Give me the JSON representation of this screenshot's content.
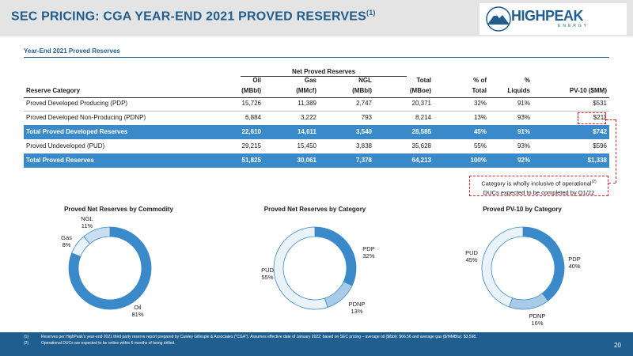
{
  "header": {
    "title": "SEC PRICING: CGA YEAR-END 2021 PROVED RESERVES",
    "title_sup": "(1)",
    "logo_text": "HIGHPEAK",
    "logo_sub": "ENERGY"
  },
  "section": "Year-End 2021 Proved Reserves",
  "table": {
    "group_header": "Net Proved Reserves",
    "columns_top": [
      "Oil",
      "Gas",
      "NGL",
      "Total",
      "% of",
      "%",
      ""
    ],
    "columns_bottom": [
      "(MBbl)",
      "(MMcf)",
      "(MBbl)",
      "(MBoe)",
      "Total",
      "Liquids",
      "PV-10 ($MM)"
    ],
    "category_header": "Reserve Category",
    "rows": [
      {
        "category": "Proved Developed Producing (PDP)",
        "values": [
          "15,726",
          "11,389",
          "2,747",
          "20,371",
          "32%",
          "91%",
          "$531"
        ],
        "highlight": false
      },
      {
        "category": "Proved Developed Non-Producing (PDNP)",
        "values": [
          "6,884",
          "3,222",
          "793",
          "8,214",
          "13%",
          "93%",
          "$211"
        ],
        "highlight": false
      },
      {
        "category": "Total Proved Developed Reserves",
        "values": [
          "22,610",
          "14,611",
          "3,540",
          "28,585",
          "45%",
          "91%",
          "$742"
        ],
        "highlight": true
      },
      {
        "category": "Proved Undeveloped (PUD)",
        "values": [
          "29,215",
          "15,450",
          "3,838",
          "35,628",
          "55%",
          "93%",
          "$596"
        ],
        "highlight": false
      },
      {
        "category": "Total Proved Reserves",
        "values": [
          "51,825",
          "30,061",
          "7,378",
          "64,213",
          "100%",
          "92%",
          "$1,338"
        ],
        "highlight": true
      }
    ]
  },
  "note": {
    "line1": "Category is wholly inclusive of operational",
    "line1_sup": "(2)",
    "line2": "DUCs expected to be completed by Q1/22"
  },
  "charts": {
    "commodity": {
      "title": "Proved Net Reserves by Commodity",
      "labels": [
        {
          "name": "NGL",
          "pct": "11%"
        },
        {
          "name": "Gas",
          "pct": "8%"
        },
        {
          "name": "Oil",
          "pct": "81%"
        }
      ]
    },
    "category": {
      "title": "Proved Net Reserves by Category",
      "labels": [
        {
          "name": "PDP",
          "pct": "32%"
        },
        {
          "name": "PUD",
          "pct": "55%"
        },
        {
          "name": "PDNP",
          "pct": "13%"
        }
      ]
    },
    "pv10": {
      "title": "Proved PV-10 by Category",
      "labels": [
        {
          "name": "PUD",
          "pct": "45%"
        },
        {
          "name": "PDP",
          "pct": "40%"
        },
        {
          "name": "PDNP",
          "pct": "16%"
        }
      ]
    }
  },
  "chart_data": [
    {
      "type": "pie",
      "title": "Proved Net Reserves by Commodity",
      "categories": [
        "Oil",
        "Gas",
        "NGL"
      ],
      "values": [
        81,
        8,
        11
      ],
      "colors": [
        "#3a89c9",
        "#eaf2fa",
        "#c9def1"
      ]
    },
    {
      "type": "pie",
      "title": "Proved Net Reserves by Category",
      "categories": [
        "PDP",
        "PDNP",
        "PUD"
      ],
      "values": [
        32,
        13,
        55
      ],
      "colors": [
        "#3a89c9",
        "#a9cbe8",
        "#eaf2fa"
      ]
    },
    {
      "type": "pie",
      "title": "Proved PV-10 by Category",
      "categories": [
        "PDP",
        "PDNP",
        "PUD"
      ],
      "values": [
        40,
        16,
        45
      ],
      "colors": [
        "#3a89c9",
        "#a9cbe8",
        "#eaf2fa"
      ]
    }
  ],
  "footnotes": [
    {
      "num": "(1)",
      "text": "Reserves per HighPeak's year-end 2021 third party reserve report prepared by Cawley Gillespie & Associates (\"CGA\"). Assumes effective date of January 2022; based on SEC pricing – average oil ($/bbl): $66.56 and average gas ($/MMBtu): $3.598."
    },
    {
      "num": "(2)",
      "text": "Operational DUCs are expected to be online within 6 months of being drilled."
    }
  ],
  "page_number": "20",
  "colors": {
    "brand": "#1f5e8e",
    "accent": "#3a89c9",
    "dashed": "#d8232a"
  }
}
